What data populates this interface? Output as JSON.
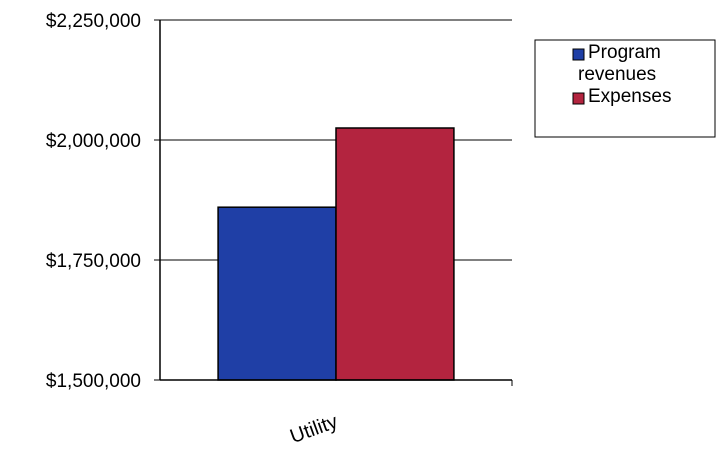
{
  "chart_data": {
    "type": "bar",
    "title": "",
    "xlabel": "",
    "ylabel": "",
    "categories": [
      "Utility"
    ],
    "series": [
      {
        "name": "Program revenues",
        "legend_lines": [
          "Program",
          "revenues"
        ],
        "values": [
          1860000
        ],
        "color": "#1f3fa6"
      },
      {
        "name": "Expenses",
        "legend_lines": [
          "Expenses"
        ],
        "values": [
          2025000
        ],
        "color": "#b3243f"
      }
    ],
    "ylim": [
      1500000,
      2250000
    ],
    "yticks": [
      1500000,
      1750000,
      2000000,
      2250000
    ],
    "ytick_labels": [
      "$1,500,000",
      "$1,750,000",
      "$2,000,000",
      "$2,250,000"
    ],
    "grid": true,
    "legend_position": "top-right"
  }
}
